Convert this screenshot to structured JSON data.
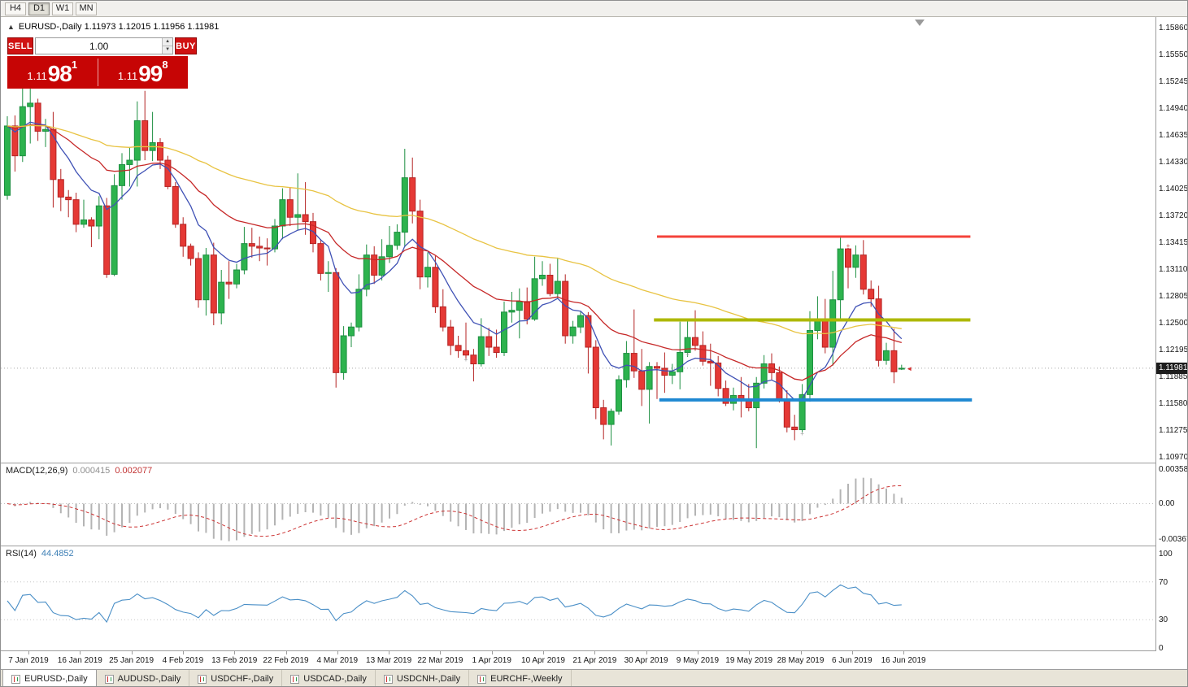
{
  "toolbar": {
    "timeframes": [
      {
        "label": "H4",
        "active": false
      },
      {
        "label": "D1",
        "active": true
      },
      {
        "label": "W1",
        "active": false
      },
      {
        "label": "MN",
        "active": false
      }
    ]
  },
  "chart_header": {
    "collapse_icon": "▲",
    "symbol_line": "EURUSD-,Daily  1.11973 1.12015 1.11956 1.11981"
  },
  "trade_panel": {
    "sell_label": "SELL",
    "buy_label": "BUY",
    "volume": "1.00",
    "sell_price": {
      "prefix": "1.11",
      "big": "98",
      "sup": "1"
    },
    "buy_price": {
      "prefix": "1.11",
      "big": "99",
      "sup": "8"
    }
  },
  "indicators": {
    "macd_label": "MACD(12,26,9)",
    "macd_value1": "0.000415",
    "macd_value2": "0.002077",
    "rsi_label": "RSI(14)",
    "rsi_value": "44.4852"
  },
  "tabs": [
    {
      "label": "EURUSD-,Daily",
      "active": true
    },
    {
      "label": "AUDUSD-,Daily",
      "active": false
    },
    {
      "label": "USDCHF-,Daily",
      "active": false
    },
    {
      "label": "USDCAD-,Daily",
      "active": false
    },
    {
      "label": "USDCNH-,Daily",
      "active": false
    },
    {
      "label": "EURCHF-,Weekly",
      "active": false
    }
  ],
  "chart_data": {
    "type": "candlestick",
    "symbol": "EURUSD",
    "timeframe": "Daily",
    "title": "EURUSD-,Daily",
    "ylim": [
      1.1097,
      1.1586
    ],
    "last_price": 1.11981,
    "current_price_label": "1.11981",
    "price_axis_ticks": [
      "1.15860",
      "1.15550",
      "1.15245",
      "1.14940",
      "1.14635",
      "1.14330",
      "1.14025",
      "1.13720",
      "1.13415",
      "1.13110",
      "1.12805",
      "1.12500",
      "1.12195",
      "1.11885",
      "1.11580",
      "1.11275",
      "1.10970"
    ],
    "date_labels": [
      "7 Jan 2019",
      "16 Jan 2019",
      "25 Jan 2019",
      "4 Feb 2019",
      "13 Feb 2019",
      "22 Feb 2019",
      "4 Mar 2019",
      "13 Mar 2019",
      "22 Mar 2019",
      "1 Apr 2019",
      "10 Apr 2019",
      "21 Apr 2019",
      "30 Apr 2019",
      "9 May 2019",
      "19 May 2019",
      "28 May 2019",
      "6 Jun 2019",
      "16 Jun 2019"
    ],
    "ohlc": [
      [
        1.1395,
        1.1485,
        1.139,
        1.1474
      ],
      [
        1.1474,
        1.1486,
        1.1422,
        1.144
      ],
      [
        1.144,
        1.1518,
        1.1433,
        1.1496
      ],
      [
        1.1496,
        1.1522,
        1.1454,
        1.15
      ],
      [
        1.15,
        1.1505,
        1.1457,
        1.1468
      ],
      [
        1.1468,
        1.1482,
        1.145,
        1.147
      ],
      [
        1.147,
        1.149,
        1.1381,
        1.1413
      ],
      [
        1.1413,
        1.1425,
        1.1377,
        1.1393
      ],
      [
        1.1393,
        1.1401,
        1.137,
        1.139
      ],
      [
        1.139,
        1.1398,
        1.1353,
        1.1362
      ],
      [
        1.1362,
        1.139,
        1.1358,
        1.1367
      ],
      [
        1.1367,
        1.137,
        1.1336,
        1.136
      ],
      [
        1.136,
        1.1394,
        1.1345,
        1.1383
      ],
      [
        1.1383,
        1.1392,
        1.1301,
        1.1305
      ],
      [
        1.1305,
        1.1419,
        1.1303,
        1.1406
      ],
      [
        1.1406,
        1.1443,
        1.139,
        1.143
      ],
      [
        1.143,
        1.145,
        1.1405,
        1.1435
      ],
      [
        1.1435,
        1.1502,
        1.1405,
        1.148
      ],
      [
        1.148,
        1.1514,
        1.1435,
        1.1446
      ],
      [
        1.1446,
        1.149,
        1.1434,
        1.1455
      ],
      [
        1.1455,
        1.146,
        1.1425,
        1.1435
      ],
      [
        1.1435,
        1.144,
        1.1402,
        1.1405
      ],
      [
        1.1405,
        1.141,
        1.1358,
        1.1362
      ],
      [
        1.1362,
        1.137,
        1.1325,
        1.1337
      ],
      [
        1.1337,
        1.134,
        1.1315,
        1.1323
      ],
      [
        1.1323,
        1.133,
        1.1267,
        1.1276
      ],
      [
        1.1276,
        1.1335,
        1.1258,
        1.1327
      ],
      [
        1.1327,
        1.1341,
        1.1247,
        1.1261
      ],
      [
        1.1261,
        1.131,
        1.1248,
        1.1296
      ],
      [
        1.1296,
        1.132,
        1.1277,
        1.1294
      ],
      [
        1.1294,
        1.1317,
        1.1289,
        1.131
      ],
      [
        1.131,
        1.1359,
        1.1305,
        1.134
      ],
      [
        1.134,
        1.1358,
        1.1324,
        1.1337
      ],
      [
        1.1337,
        1.1348,
        1.132,
        1.1335
      ],
      [
        1.1335,
        1.1346,
        1.1315,
        1.1334
      ],
      [
        1.1334,
        1.1368,
        1.133,
        1.136
      ],
      [
        1.136,
        1.1403,
        1.1345,
        1.139
      ],
      [
        1.139,
        1.1404,
        1.136,
        1.137
      ],
      [
        1.137,
        1.142,
        1.1355,
        1.1373
      ],
      [
        1.1373,
        1.141,
        1.135,
        1.1365
      ],
      [
        1.1365,
        1.1375,
        1.133,
        1.134
      ],
      [
        1.134,
        1.1345,
        1.1298,
        1.1306
      ],
      [
        1.1306,
        1.132,
        1.1285,
        1.1307
      ],
      [
        1.1307,
        1.1312,
        1.1176,
        1.1193
      ],
      [
        1.1193,
        1.1246,
        1.1185,
        1.1235
      ],
      [
        1.1235,
        1.125,
        1.1222,
        1.1245
      ],
      [
        1.1245,
        1.1305,
        1.124,
        1.1288
      ],
      [
        1.1288,
        1.1339,
        1.128,
        1.1327
      ],
      [
        1.1327,
        1.1337,
        1.1294,
        1.1304
      ],
      [
        1.1304,
        1.1345,
        1.1298,
        1.1325
      ],
      [
        1.1325,
        1.136,
        1.1318,
        1.1338
      ],
      [
        1.1338,
        1.1362,
        1.1333,
        1.1353
      ],
      [
        1.1353,
        1.1448,
        1.1336,
        1.1415
      ],
      [
        1.1415,
        1.1438,
        1.1363,
        1.1377
      ],
      [
        1.1377,
        1.139,
        1.1288,
        1.1302
      ],
      [
        1.1302,
        1.133,
        1.129,
        1.1313
      ],
      [
        1.1313,
        1.1326,
        1.1261,
        1.1268
      ],
      [
        1.1268,
        1.1288,
        1.124,
        1.1245
      ],
      [
        1.1245,
        1.1253,
        1.1213,
        1.1224
      ],
      [
        1.1224,
        1.1235,
        1.121,
        1.1218
      ],
      [
        1.1218,
        1.125,
        1.1208,
        1.1213
      ],
      [
        1.1213,
        1.122,
        1.1183,
        1.1203
      ],
      [
        1.1203,
        1.1255,
        1.12,
        1.1234
      ],
      [
        1.1234,
        1.1244,
        1.1212,
        1.1222
      ],
      [
        1.1222,
        1.1242,
        1.121,
        1.1216
      ],
      [
        1.1216,
        1.1274,
        1.1212,
        1.1262
      ],
      [
        1.1262,
        1.1285,
        1.125,
        1.1264
      ],
      [
        1.1264,
        1.1289,
        1.1232,
        1.1274
      ],
      [
        1.1274,
        1.129,
        1.1248,
        1.1254
      ],
      [
        1.1254,
        1.1325,
        1.1252,
        1.13
      ],
      [
        1.13,
        1.132,
        1.1292,
        1.1304
      ],
      [
        1.1304,
        1.1317,
        1.128,
        1.1283
      ],
      [
        1.1283,
        1.1324,
        1.1278,
        1.1297
      ],
      [
        1.1297,
        1.1305,
        1.1226,
        1.1235
      ],
      [
        1.1235,
        1.1252,
        1.1226,
        1.1245
      ],
      [
        1.1245,
        1.1263,
        1.1238,
        1.1258
      ],
      [
        1.1258,
        1.1262,
        1.1192,
        1.1222
      ],
      [
        1.1222,
        1.123,
        1.114,
        1.1153
      ],
      [
        1.1153,
        1.1162,
        1.1117,
        1.1134
      ],
      [
        1.1134,
        1.1152,
        1.111,
        1.1149
      ],
      [
        1.1149,
        1.119,
        1.1145,
        1.1185
      ],
      [
        1.1185,
        1.1229,
        1.1176,
        1.1215
      ],
      [
        1.1215,
        1.1265,
        1.1187,
        1.1195
      ],
      [
        1.1195,
        1.122,
        1.1155,
        1.1174
      ],
      [
        1.1174,
        1.1205,
        1.1135,
        1.12
      ],
      [
        1.12,
        1.1205,
        1.1163,
        1.1198
      ],
      [
        1.1198,
        1.1216,
        1.117,
        1.119
      ],
      [
        1.119,
        1.1203,
        1.118,
        1.1194
      ],
      [
        1.1194,
        1.1251,
        1.1174,
        1.1216
      ],
      [
        1.1216,
        1.1254,
        1.1211,
        1.1233
      ],
      [
        1.1233,
        1.1264,
        1.1218,
        1.1224
      ],
      [
        1.1224,
        1.124,
        1.1201,
        1.1206
      ],
      [
        1.1206,
        1.1226,
        1.1178,
        1.1204
      ],
      [
        1.1204,
        1.1212,
        1.1166,
        1.1175
      ],
      [
        1.1175,
        1.1184,
        1.1155,
        1.1158
      ],
      [
        1.1158,
        1.1176,
        1.115,
        1.1167
      ],
      [
        1.1167,
        1.1188,
        1.1142,
        1.1162
      ],
      [
        1.1162,
        1.118,
        1.1149,
        1.1153
      ],
      [
        1.1153,
        1.1188,
        1.1107,
        1.1181
      ],
      [
        1.1181,
        1.1213,
        1.1175,
        1.1203
      ],
      [
        1.1203,
        1.1215,
        1.1184,
        1.1193
      ],
      [
        1.1193,
        1.12,
        1.1159,
        1.1163
      ],
      [
        1.1163,
        1.1173,
        1.1125,
        1.1131
      ],
      [
        1.1131,
        1.1145,
        1.1116,
        1.1128
      ],
      [
        1.1128,
        1.118,
        1.1125,
        1.1168
      ],
      [
        1.1168,
        1.1263,
        1.116,
        1.1241
      ],
      [
        1.1241,
        1.128,
        1.1231,
        1.1252
      ],
      [
        1.1252,
        1.1277,
        1.1215,
        1.1222
      ],
      [
        1.1222,
        1.1309,
        1.1201,
        1.1276
      ],
      [
        1.1276,
        1.1348,
        1.1252,
        1.1334
      ],
      [
        1.1334,
        1.1335,
        1.1289,
        1.1313
      ],
      [
        1.1313,
        1.1338,
        1.1301,
        1.1327
      ],
      [
        1.1327,
        1.1344,
        1.1282,
        1.1288
      ],
      [
        1.1288,
        1.1298,
        1.1268,
        1.1277
      ],
      [
        1.1277,
        1.1292,
        1.12,
        1.1207
      ],
      [
        1.1207,
        1.1227,
        1.1202,
        1.1218
      ],
      [
        1.1218,
        1.1243,
        1.1181,
        1.1194
      ],
      [
        1.1197,
        1.1202,
        1.1196,
        1.1198
      ]
    ],
    "moving_averages": [
      {
        "period": 5,
        "color": "#3f51b5",
        "name": "ma-fast-blue"
      },
      {
        "period": 13,
        "color": "#c62828",
        "name": "ma-mid-red"
      },
      {
        "period": 34,
        "color": "#e8c342",
        "name": "ma-slow-yellow"
      }
    ],
    "hlines": [
      {
        "name": "resistance-line-red",
        "price": 1.1348,
        "color": "#f4433b",
        "width": 3,
        "from_bar": 85,
        "to_bar": 126
      },
      {
        "name": "pivot-line-olive",
        "price": 1.1253,
        "color": "#aeb804",
        "width": 4,
        "from_bar": 84.6,
        "to_bar": 126
      },
      {
        "name": "support-line-blue",
        "price": 1.1162,
        "color": "#1e88d2",
        "width": 4,
        "from_bar": 85.3,
        "to_bar": 126.2
      }
    ],
    "markers": [
      {
        "bar": 60,
        "price": 1.1208,
        "glyph": "+",
        "color": "#9a9a9a"
      },
      {
        "bar": 89,
        "price": 1.1214,
        "glyph": "+",
        "color": "#9a9a9a"
      },
      {
        "bar": 104,
        "price": 1.1124,
        "glyph": "+",
        "color": "#9a9a9a"
      },
      {
        "bar": 110,
        "price": 1.1338,
        "glyph": "+",
        "color": "#cc4444"
      },
      {
        "bar": 118,
        "price": 1.11981,
        "glyph": "◄",
        "color": "#d32f2f"
      }
    ],
    "macd": {
      "fast": 12,
      "slow": 26,
      "signal": 9,
      "ylim": [
        -0.00367,
        0.0035818
      ],
      "axis_ticks": [
        {
          "label": "0.0035818",
          "value": 0.0035818
        },
        {
          "label": "0.00",
          "value": 0
        },
        {
          "label": "-0.00367",
          "value": -0.00367
        }
      ]
    },
    "rsi": {
      "period": 14,
      "levels": [
        70,
        30
      ],
      "axis_ticks": [
        {
          "label": "100",
          "value": 100
        },
        {
          "label": "70",
          "value": 70
        },
        {
          "label": "30",
          "value": 30
        },
        {
          "label": "0",
          "value": 0
        }
      ]
    }
  }
}
